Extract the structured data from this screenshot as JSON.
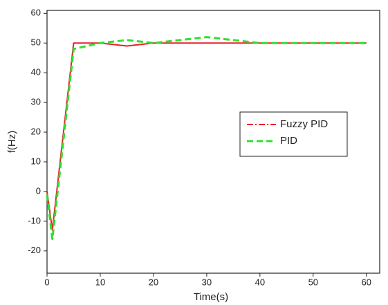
{
  "chart_data": {
    "type": "line",
    "x_label": "Time(s)",
    "y_label": "f(Hz)",
    "x": [
      0,
      1,
      5,
      10,
      15,
      20,
      25,
      30,
      35,
      40,
      50,
      60
    ],
    "series": [
      {
        "name": "Fuzzy PID",
        "color": "#e8202a",
        "values": [
          0,
          -13,
          50,
          50,
          49,
          50,
          50,
          50,
          50,
          50,
          50,
          50
        ]
      },
      {
        "name": "PID",
        "color": "#2ee02e",
        "values": [
          -1,
          -16,
          48,
          50,
          51,
          50,
          51,
          52,
          51,
          50,
          50,
          50
        ]
      }
    ],
    "xlim": [
      0,
      62.5
    ],
    "xticks": [
      0,
      10,
      20,
      30,
      40,
      50,
      60
    ],
    "ylim": [
      -27.5,
      61
    ],
    "yticks": [
      -20,
      -10,
      0,
      10,
      20,
      30,
      40,
      50,
      60
    ],
    "legend": "center-right"
  }
}
